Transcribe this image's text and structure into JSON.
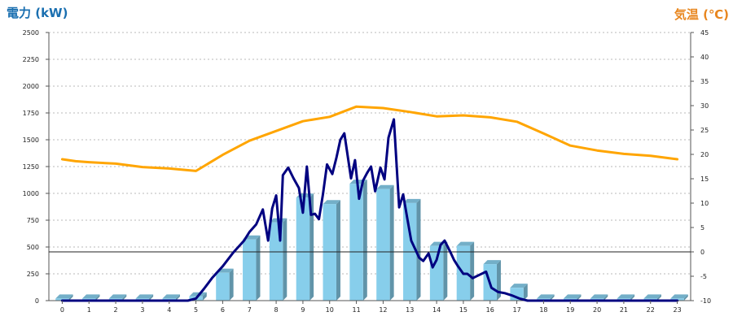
{
  "chart_data": {
    "type": "bar",
    "y_left_label": "電力 (kW)",
    "y_right_label": "気温 (℃)",
    "y_left_ticks": [
      0,
      250,
      500,
      750,
      1000,
      1250,
      1500,
      1750,
      2000,
      2250,
      2500
    ],
    "y_right_ticks": [
      -10,
      -5,
      0,
      5,
      10,
      15,
      20,
      25,
      30,
      35,
      40,
      45
    ],
    "ylim_left": [
      0,
      2500
    ],
    "ylim_right": [
      -10,
      45
    ],
    "categories": [
      "0",
      "1",
      "2",
      "3",
      "4",
      "5",
      "6",
      "7",
      "8",
      "9",
      "10",
      "11",
      "12",
      "13",
      "14",
      "15",
      "16",
      "17",
      "18",
      "19",
      "20",
      "21",
      "22",
      "23"
    ],
    "grid": "horizontal dotted",
    "series": [
      {
        "type": "bar",
        "axis": "left",
        "color": "#87CEEB",
        "values": [
          20,
          20,
          20,
          20,
          20,
          40,
          260,
          570,
          730,
          960,
          900,
          1090,
          1040,
          910,
          510,
          510,
          340,
          120,
          20,
          20,
          20,
          20,
          20,
          20
        ]
      },
      {
        "type": "line",
        "axis": "left",
        "color": "#000080",
        "x": [
          0,
          1,
          2,
          3,
          4,
          4.7,
          5.0,
          5.3,
          5.6,
          6.0,
          6.4,
          6.8,
          7.0,
          7.25,
          7.5,
          7.7,
          7.85,
          8.0,
          8.15,
          8.25,
          8.45,
          8.65,
          8.85,
          9.0,
          9.15,
          9.3,
          9.45,
          9.6,
          9.75,
          9.9,
          10.1,
          10.25,
          10.4,
          10.55,
          10.8,
          10.95,
          11.1,
          11.25,
          11.4,
          11.55,
          11.7,
          11.9,
          12.05,
          12.2,
          12.4,
          12.6,
          12.75,
          12.9,
          13.05,
          13.2,
          13.35,
          13.5,
          13.7,
          13.85,
          14.0,
          14.15,
          14.3,
          14.5,
          14.65,
          14.8,
          15.0,
          15.15,
          15.35,
          15.6,
          15.85,
          16.05,
          16.3,
          16.55,
          16.8,
          17.1,
          17.4,
          17.6,
          17.75,
          18,
          19,
          20,
          21,
          22,
          23
        ],
        "y": [
          0,
          0,
          0,
          0,
          0,
          0,
          20,
          110,
          210,
          320,
          450,
          560,
          640,
          710,
          850,
          560,
          860,
          980,
          560,
          1170,
          1240,
          1140,
          1050,
          820,
          1250,
          800,
          810,
          760,
          990,
          1270,
          1180,
          1330,
          1500,
          1560,
          1140,
          1310,
          950,
          1120,
          1190,
          1250,
          1020,
          1240,
          1130,
          1520,
          1690,
          870,
          990,
          770,
          560,
          480,
          400,
          370,
          440,
          310,
          380,
          520,
          560,
          460,
          380,
          320,
          250,
          250,
          210,
          240,
          270,
          120,
          80,
          70,
          50,
          20,
          0,
          0,
          0,
          0,
          0,
          0,
          0,
          0,
          0
        ]
      },
      {
        "type": "line",
        "axis": "right",
        "color": "#FFA500",
        "x": [
          0,
          0.5,
          1,
          2,
          3,
          4,
          5,
          6,
          7,
          8,
          9,
          10,
          11,
          12,
          13,
          14,
          15,
          16,
          17,
          18,
          19,
          20,
          21,
          22,
          23
        ],
        "y": [
          19,
          18.6,
          18.4,
          18.1,
          17.4,
          17.1,
          16.6,
          19.9,
          22.8,
          24.8,
          26.8,
          27.7,
          29.8,
          29.5,
          28.7,
          27.8,
          28.0,
          27.6,
          26.7,
          24.3,
          21.8,
          20.8,
          20.1,
          19.7,
          19.0
        ]
      }
    ]
  }
}
